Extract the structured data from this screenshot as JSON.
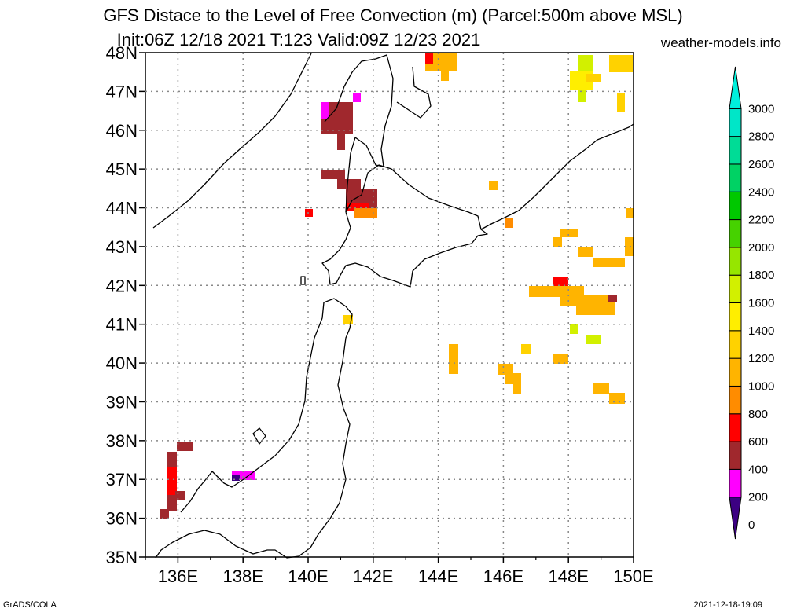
{
  "header": {
    "title_line1": "GFS Distace to the Level of Free Convection (m) (Parcel:500m above MSL)",
    "title_line2": "Init:06Z 12/18 2021 T:123 Valid:09Z 12/23 2021",
    "site": "weather-models.info"
  },
  "footer": {
    "left": "GrADS/COLA",
    "right": "2021-12-18-19:09"
  },
  "map": {
    "lon_range": [
      135,
      150
    ],
    "lat_range": [
      35,
      48
    ],
    "lat_ticks": [
      "35N",
      "36N",
      "37N",
      "38N",
      "39N",
      "40N",
      "41N",
      "42N",
      "43N",
      "44N",
      "45N",
      "46N",
      "47N",
      "48N"
    ],
    "lon_ticks": [
      "136E",
      "138E",
      "140E",
      "142E",
      "144E",
      "146E",
      "148E",
      "150E"
    ],
    "grid": true,
    "coast_color": "#000000"
  },
  "colorbar": {
    "labels": [
      "0",
      "200",
      "400",
      "600",
      "800",
      "1000",
      "1200",
      "1400",
      "1600",
      "1800",
      "2000",
      "2200",
      "2400",
      "2600",
      "2800",
      "3000"
    ],
    "colors": [
      "#3c0082",
      "#ff00ff",
      "#a0282d",
      "#ff0000",
      "#ff8c00",
      "#ffb400",
      "#ffd200",
      "#ffee00",
      "#d2f000",
      "#96e600",
      "#46d200",
      "#00c800",
      "#00d264",
      "#00dc96",
      "#00e6c8",
      "#00f0dc"
    ]
  }
}
